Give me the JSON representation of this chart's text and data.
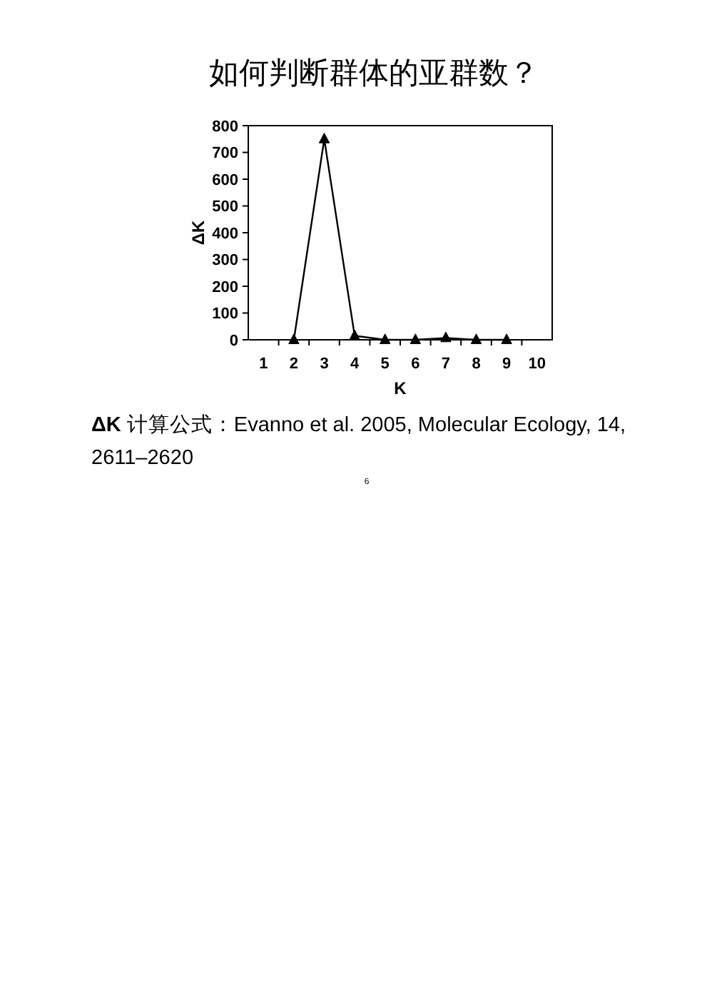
{
  "chart_data": {
    "type": "line",
    "title": "如何判断群体的亚群数？",
    "xlabel": "K",
    "ylabel": "ΔK",
    "categories": [
      "1",
      "2",
      "3",
      "4",
      "5",
      "6",
      "7",
      "8",
      "9",
      "10"
    ],
    "values": [
      null,
      0,
      750,
      15,
      0,
      0,
      7,
      0,
      0,
      null
    ],
    "color": "#000000",
    "ylim": [
      0,
      800
    ],
    "yticks": [
      0,
      100,
      200,
      300,
      400,
      500,
      600,
      700,
      800
    ],
    "marker": "triangle",
    "line_style": "solid",
    "annotations": [
      "**ΔK** 计算公式：Evanno et al. 2005, Molecular Ecology, 14, 2611–2620",
      "6"
    ]
  }
}
